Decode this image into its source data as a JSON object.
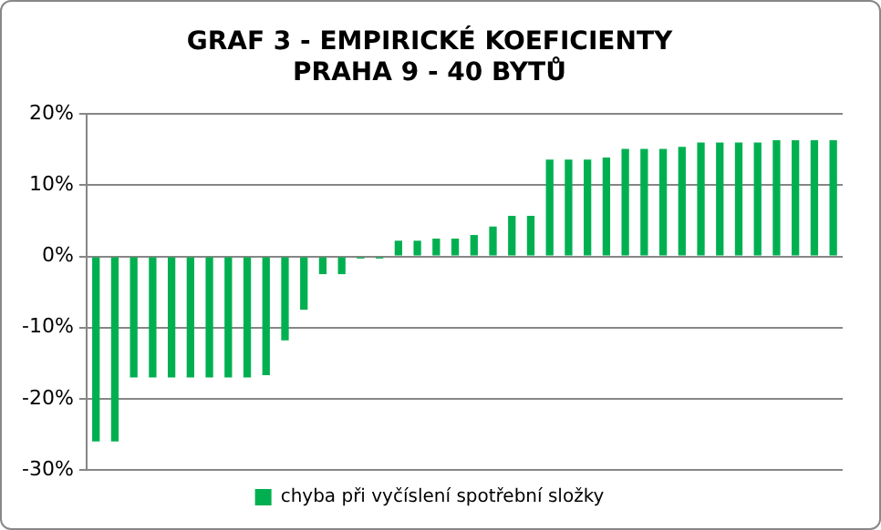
{
  "chart_data": {
    "type": "bar",
    "title": "GRAF 3 - EMPIRICKÉ KOEFICIENTY\nPRAHA 9 - 40 BYTŮ",
    "categories": [
      null,
      null,
      null,
      null,
      null,
      null,
      null,
      null,
      null,
      null,
      null,
      null,
      null,
      null,
      null,
      null,
      null,
      null,
      null,
      null,
      null,
      null,
      null,
      null,
      null,
      null,
      null,
      null,
      null,
      null,
      null,
      null,
      null,
      null,
      null,
      null,
      null,
      null,
      null,
      null
    ],
    "series": [
      {
        "name": "chyba při vyčíslení spotřební složky",
        "color": "#00b050",
        "values": [
          -26,
          -26,
          -17,
          -17,
          -17,
          -17,
          -17,
          -17,
          -17,
          -16.7,
          -11.8,
          -7.5,
          -2.5,
          -2.5,
          -0.3,
          -0.3,
          2.2,
          2.2,
          2.5,
          2.5,
          3.0,
          4.2,
          5.7,
          5.7,
          13.6,
          13.6,
          13.6,
          13.9,
          15.1,
          15.1,
          15.1,
          15.4,
          16.0,
          16.0,
          16.0,
          16.0,
          16.3,
          16.3,
          16.3,
          16.3
        ]
      }
    ],
    "ylim": [
      -30,
      20
    ],
    "yticks": [
      {
        "value": -30,
        "label": "-30%"
      },
      {
        "value": -20,
        "label": "-20%"
      },
      {
        "value": -10,
        "label": "-10%"
      },
      {
        "value": 0,
        "label": "0%"
      },
      {
        "value": 10,
        "label": "10%"
      },
      {
        "value": 20,
        "label": "20%"
      }
    ],
    "grid": "y",
    "legend": "bottom"
  }
}
